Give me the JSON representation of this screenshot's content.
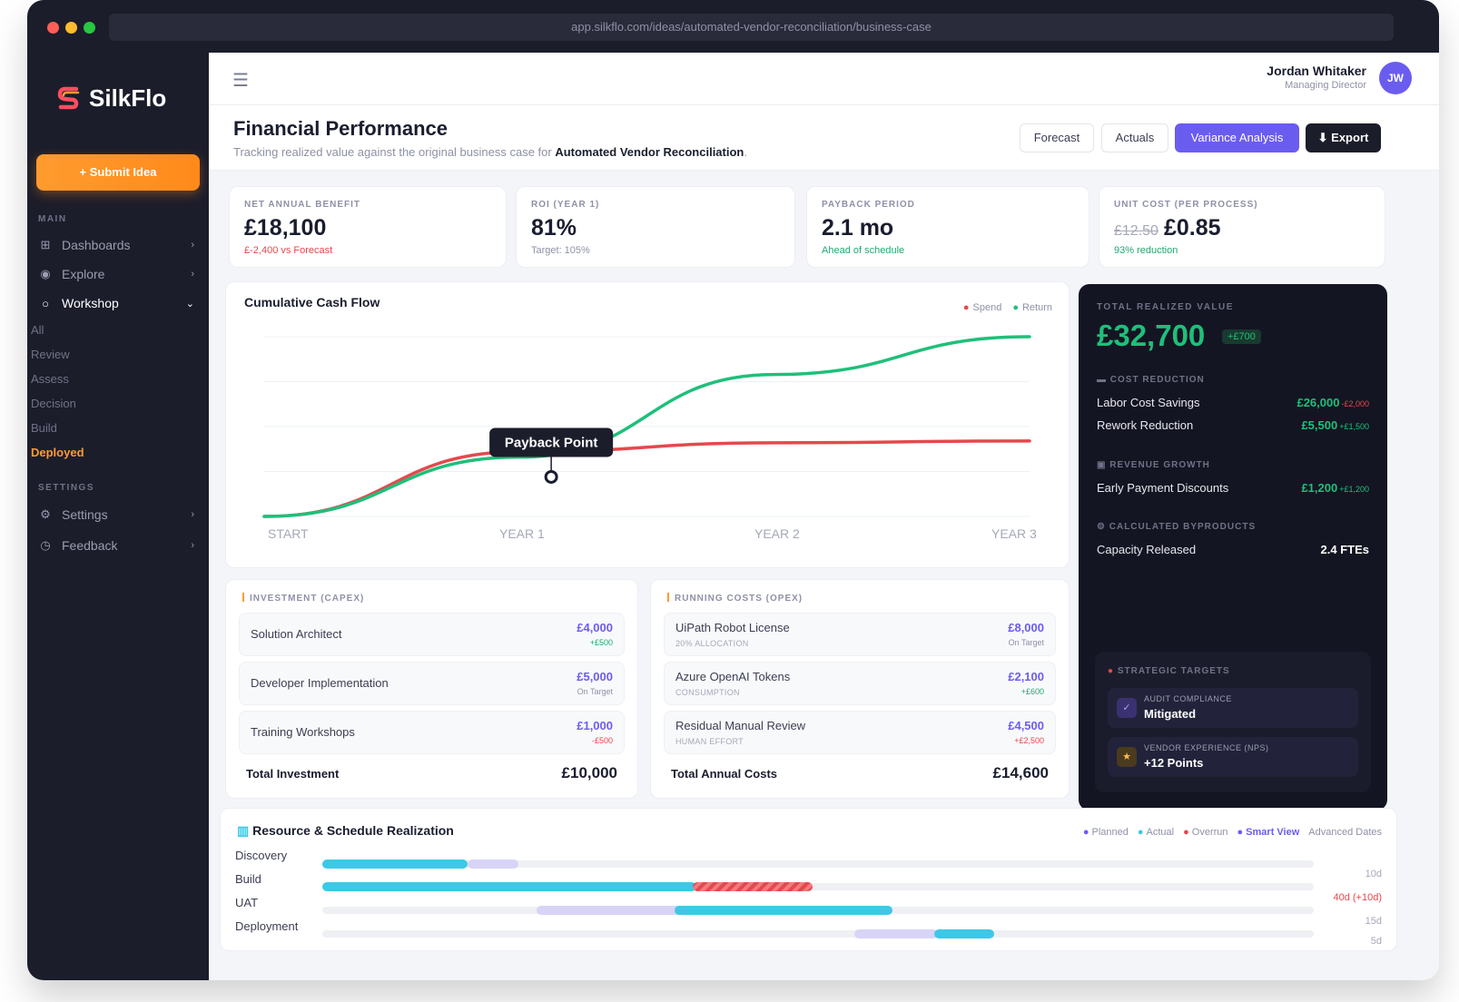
{
  "browser": {
    "url": "app.silkflo.com/ideas/automated-vendor-reconciliation/business-case"
  },
  "sidebar": {
    "brand": "SilkFlo",
    "submit_label": "+ Submit Idea",
    "main_label": "MAIN",
    "items": [
      {
        "label": "Dashboards",
        "icon": "grid-icon"
      },
      {
        "label": "Explore",
        "icon": "compass-icon"
      },
      {
        "label": "Workshop",
        "icon": "circle-icon"
      }
    ],
    "workshop_sub": [
      "All",
      "Review",
      "Assess",
      "Decision",
      "Build",
      "Deployed"
    ],
    "settings_label": "SETTINGS",
    "settings_items": [
      {
        "label": "Settings",
        "icon": "gear-icon"
      },
      {
        "label": "Feedback",
        "icon": "feedback-icon"
      }
    ]
  },
  "user": {
    "name": "Jordan Whitaker",
    "role": "Managing Director",
    "initials": "JW"
  },
  "page": {
    "title": "Financial Performance",
    "subtitle_prefix": "Tracking realized value against the original business case for ",
    "subtitle_bold": "Automated Vendor Reconciliation",
    "subtitle_suffix": ".",
    "buttons": {
      "forecast": "Forecast",
      "actuals": "Actuals",
      "variance": "Variance Analysis",
      "export": "⬇ Export"
    }
  },
  "kpis": [
    {
      "label": "NET ANNUAL BENEFIT",
      "value": "£18,100",
      "note": "£-2,400 vs Forecast",
      "note_color": "red"
    },
    {
      "label": "ROI (YEAR 1)",
      "value": "81%",
      "note": "Target: 105%",
      "note_color": "grey"
    },
    {
      "label": "PAYBACK PERIOD",
      "value": "2.1 mo",
      "note": "Ahead of schedule",
      "note_color": "green"
    },
    {
      "label": "UNIT COST (PER PROCESS)",
      "old_value": "£12.50",
      "value": "£0.85",
      "note": "93% reduction",
      "note_color": "green"
    }
  ],
  "cashflow": {
    "title": "Cumulative Cash Flow",
    "legend_spend": "Spend",
    "legend_return": "Return",
    "annotation": "Payback Point",
    "x_labels": [
      "START",
      "YEAR 1",
      "YEAR 2",
      "YEAR 3"
    ]
  },
  "chart_data": {
    "type": "line",
    "title": "Cumulative Cash Flow",
    "x": [
      "START",
      "YEAR 1",
      "YEAR 2",
      "YEAR 3"
    ],
    "series": [
      {
        "name": "Spend",
        "color": "#e5484d",
        "values": [
          0,
          0.36,
          0.41,
          0.42
        ]
      },
      {
        "name": "Return",
        "color": "#1fbf7a",
        "values": [
          0,
          0.33,
          0.79,
          1.0
        ]
      }
    ],
    "annotation": {
      "label": "Payback Point",
      "x_fraction": 0.375
    },
    "grid": true
  },
  "realized": {
    "label": "TOTAL REALIZED VALUE",
    "value": "£32,700",
    "delta": "+£700",
    "sections": [
      {
        "title": "COST REDUCTION",
        "icon": "card-icon",
        "rows": [
          {
            "label": "Labor Cost Savings",
            "value": "£26,000",
            "delta": "-£2,000",
            "neg": true
          },
          {
            "label": "Rework Reduction",
            "value": "£5,500",
            "delta": "+£1,500",
            "neg": false
          }
        ]
      },
      {
        "title": "REVENUE GROWTH",
        "icon": "chart-icon",
        "rows": [
          {
            "label": "Early Payment Discounts",
            "value": "£1,200",
            "delta": "+£1,200",
            "neg": false
          }
        ]
      },
      {
        "title": "CALCULATED BYPRODUCTS",
        "icon": "gear-icon",
        "rows": [
          {
            "label": "Capacity Released",
            "value": "2.4 FTEs",
            "delta": "",
            "neg": false
          }
        ]
      }
    ],
    "targets_label": "STRATEGIC TARGETS",
    "targets": [
      {
        "key": "AUDIT COMPLIANCE",
        "value": "Mitigated",
        "icon": "check-icon"
      },
      {
        "key": "VENDOR EXPERIENCE (NPS)",
        "value": "+12 Points",
        "icon": "star-icon"
      }
    ]
  },
  "capex": {
    "title": "INVESTMENT (CAPEX)",
    "rows": [
      {
        "name": "Solution Architect",
        "amount": "£4,000",
        "delta": "+£500",
        "delta_color": "green"
      },
      {
        "name": "Developer Implementation",
        "amount": "£5,000",
        "delta": "On Target",
        "delta_color": "grey"
      },
      {
        "name": "Training Workshops",
        "amount": "£1,000",
        "delta": "-£500",
        "delta_color": "red"
      }
    ],
    "total_label": "Total Investment",
    "total_value": "£10,000"
  },
  "opex": {
    "title": "RUNNING COSTS (OPEX)",
    "rows": [
      {
        "name": "UiPath Robot License",
        "sub": "20% ALLOCATION",
        "amount": "£8,000",
        "delta": "On Target",
        "delta_color": "grey"
      },
      {
        "name": "Azure OpenAI Tokens",
        "sub": "CONSUMPTION",
        "amount": "£2,100",
        "delta": "+£600",
        "delta_color": "green"
      },
      {
        "name": "Residual Manual Review",
        "sub": "HUMAN EFFORT",
        "amount": "£4,500",
        "delta": "+£2,500",
        "delta_color": "red"
      }
    ],
    "total_label": "Total Annual Costs",
    "total_value": "£14,600"
  },
  "gantt": {
    "title": "Resource & Schedule Realization",
    "legend": {
      "planned": "Planned",
      "actual": "Actual",
      "overrun": "Overrun",
      "smart": "Smart View",
      "advanced": "Advanced Dates"
    },
    "rows": [
      {
        "label": "Discovery",
        "duration": "10d",
        "over": false
      },
      {
        "label": "Build",
        "duration": "40d (+10d)",
        "over": true
      },
      {
        "label": "UAT",
        "duration": "15d",
        "over": false
      },
      {
        "label": "Deployment",
        "duration": "5d",
        "over": false
      }
    ]
  }
}
